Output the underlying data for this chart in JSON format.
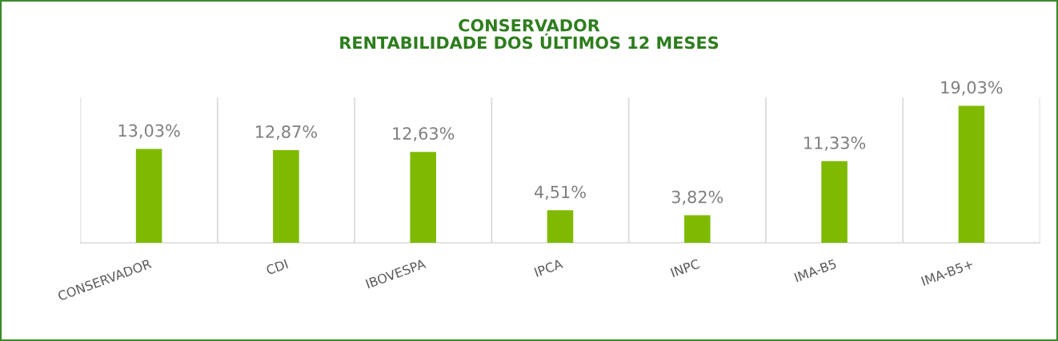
{
  "chart_data": {
    "type": "bar",
    "title": "CONSERVADOR\nRENTABILIDADE DOS ÚLTIMOS 12 MESES",
    "categories": [
      "CONSERVADOR",
      "CDI",
      "IBOVESPA",
      "IPCA",
      "INPC",
      "IMA-B5",
      "IMA-B5+"
    ],
    "values": [
      13.03,
      12.87,
      12.63,
      4.51,
      3.82,
      11.33,
      19.03
    ],
    "value_labels": [
      "13,03%",
      "12,87%",
      "12,63%",
      "4,51%",
      "3,82%",
      "11,33%",
      "19,03%"
    ],
    "color": "#7fba00",
    "grid": "x",
    "legend": false
  }
}
